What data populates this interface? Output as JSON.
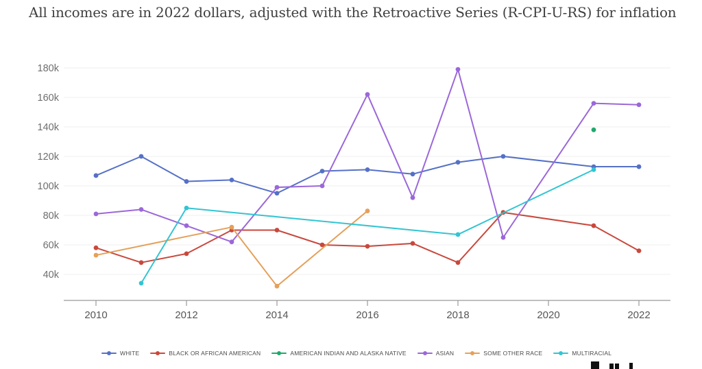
{
  "title": "All incomes are in 2022 dollars, adjusted with the Retroactive Series (R-CPI-U-RS) for inflation",
  "chart_data": {
    "type": "line",
    "title": "All incomes are in 2022 dollars, adjusted with the Retroactive Series (R-CPI-U-RS) for inflation",
    "xlabel": "",
    "ylabel": "",
    "grid": true,
    "legend_position": "bottom",
    "x_ticks": [
      {
        "label": "2010",
        "year": 2010
      },
      {
        "label": "2012",
        "year": 2012
      },
      {
        "label": "2014",
        "year": 2014
      },
      {
        "label": "2016",
        "year": 2016
      },
      {
        "label": "2018",
        "year": 2018
      },
      {
        "label": "2020",
        "year": 2020
      },
      {
        "label": "2022",
        "year": 2022
      }
    ],
    "y_ticks": [
      {
        "label": "180k",
        "value_k": 180
      },
      {
        "label": "160k",
        "value_k": 160
      },
      {
        "label": "140k",
        "value_k": 140
      },
      {
        "label": "120k",
        "value_k": 120
      },
      {
        "label": "100k",
        "value_k": 100
      },
      {
        "label": "80k",
        "value_k": 80
      },
      {
        "label": "60k",
        "value_k": 60
      },
      {
        "label": "40k",
        "value_k": 40
      }
    ],
    "x_range_years": [
      2010,
      2022
    ],
    "note_missing_year": "no data points at 2020 for any series",
    "units": "thousands of 2022 dollars",
    "series": [
      {
        "name": "WHITE",
        "color": "#5570c6",
        "points": [
          {
            "year": 2010,
            "value_k": 107
          },
          {
            "year": 2011,
            "value_k": 120
          },
          {
            "year": 2012,
            "value_k": 103
          },
          {
            "year": 2013,
            "value_k": 104
          },
          {
            "year": 2014,
            "value_k": 95
          },
          {
            "year": 2015,
            "value_k": 110
          },
          {
            "year": 2016,
            "value_k": 111
          },
          {
            "year": 2017,
            "value_k": 108
          },
          {
            "year": 2018,
            "value_k": 116
          },
          {
            "year": 2019,
            "value_k": 120
          },
          {
            "year": 2021,
            "value_k": 113
          },
          {
            "year": 2022,
            "value_k": 113
          }
        ]
      },
      {
        "name": "BLACK OR AFRICAN AMERICAN",
        "color": "#c9483c",
        "points": [
          {
            "year": 2010,
            "value_k": 58
          },
          {
            "year": 2011,
            "value_k": 48
          },
          {
            "year": 2012,
            "value_k": 54
          },
          {
            "year": 2013,
            "value_k": 70
          },
          {
            "year": 2014,
            "value_k": 70
          },
          {
            "year": 2015,
            "value_k": 60
          },
          {
            "year": 2016,
            "value_k": 59
          },
          {
            "year": 2017,
            "value_k": 61
          },
          {
            "year": 2018,
            "value_k": 48
          },
          {
            "year": 2019,
            "value_k": 82
          },
          {
            "year": 2021,
            "value_k": 73
          },
          {
            "year": 2022,
            "value_k": 56
          }
        ]
      },
      {
        "name": "AMERICAN INDIAN AND ALASKA NATIVE",
        "color": "#1fa96c",
        "points": [
          {
            "year": 2021,
            "value_k": 138
          }
        ]
      },
      {
        "name": "ASIAN",
        "color": "#9b67d9",
        "points": [
          {
            "year": 2010,
            "value_k": 81
          },
          {
            "year": 2011,
            "value_k": 84
          },
          {
            "year": 2012,
            "value_k": 73
          },
          {
            "year": 2013,
            "value_k": 62
          },
          {
            "year": 2014,
            "value_k": 99
          },
          {
            "year": 2015,
            "value_k": 100
          },
          {
            "year": 2016,
            "value_k": 162
          },
          {
            "year": 2017,
            "value_k": 92
          },
          {
            "year": 2018,
            "value_k": 179
          },
          {
            "year": 2019,
            "value_k": 65
          },
          {
            "year": 2021,
            "value_k": 156
          },
          {
            "year": 2022,
            "value_k": 155
          }
        ]
      },
      {
        "name": "SOME OTHER RACE",
        "color": "#e5a05a",
        "points": [
          {
            "year": 2010,
            "value_k": 53
          },
          {
            "year": 2013,
            "value_k": 72
          },
          {
            "year": 2014,
            "value_k": 32
          },
          {
            "year": 2016,
            "value_k": 83
          }
        ]
      },
      {
        "name": "MULTIRACIAL",
        "color": "#32c5d2",
        "points": [
          {
            "year": 2011,
            "value_k": 34
          },
          {
            "year": 2012,
            "value_k": 85
          },
          {
            "year": 2018,
            "value_k": 67
          },
          {
            "year": 2021,
            "value_k": 111
          }
        ]
      }
    ]
  },
  "legend": {
    "items": [
      "WHITE",
      "BLACK OR AFRICAN AMERICAN",
      "AMERICAN INDIAN AND ALASKA NATIVE",
      "ASIAN",
      "SOME OTHER RACE",
      "MULTIRACIAL"
    ]
  },
  "branding": {
    "watermark_note": "black logo text at bottom-right, cropped by image edge (only letter tops visible)"
  }
}
